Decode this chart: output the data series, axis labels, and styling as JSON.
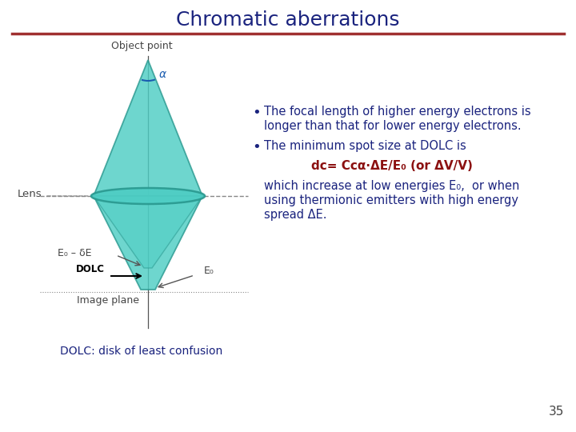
{
  "title": "Chromatic aberrations",
  "title_color": "#1a237e",
  "title_fontsize": 18,
  "bg_color": "#ffffff",
  "separator_color": "#a03030",
  "bullet1_line1": "The focal length of higher energy electrons is",
  "bullet1_line2": "longer than that for lower energy electrons.",
  "bullet2": "The minimum spot size at DOLC is",
  "formula_red": "dᴄ= Cᴄα·ΔE/E₀ (or ΔV/V)",
  "body_line1": "which increase at low energies E₀,  or when",
  "body_line2": "using thermionic emitters with high energy",
  "body_line3": "spread ΔE.",
  "text_color_blue": "#1a237e",
  "text_color_red": "#8b1010",
  "dolc_label": "DOLC",
  "dolc_footnote": "DOLC: disk of least confusion",
  "page_number": "35",
  "teal_fill": "#4ecdc4",
  "teal_edge": "#2a9990",
  "lens_label": "Lens",
  "object_label": "Object point",
  "e0_de_label": "E₀ – δE",
  "e0_label": "E₀",
  "image_label": "Image plane",
  "alpha_label": "α"
}
